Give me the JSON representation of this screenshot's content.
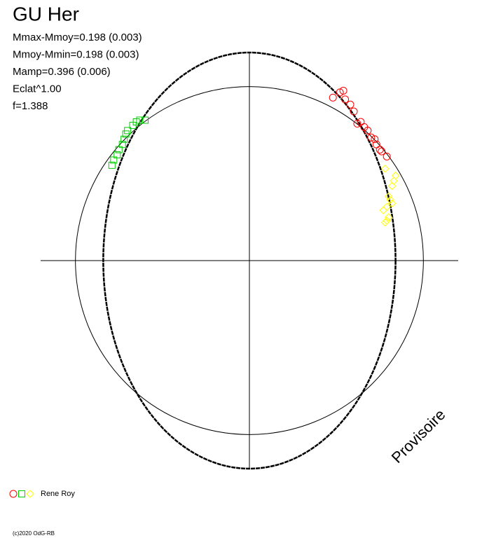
{
  "chart_data": {
    "type": "polar-phase",
    "title": "GU Her",
    "stats": [
      "Mmax-Mmoy=0.198 (0.003)",
      "Mmoy-Mmin=0.198 (0.003)",
      "Mamp=0.396 (0.006)",
      "Eclat^1.00",
      "f=1.388"
    ],
    "watermark": "Provisoire",
    "observer": "Rene Roy",
    "copyright": "(c)2020 OdG-RB",
    "xlim": [
      -1.2,
      1.2
    ],
    "ylim": [
      -1.2,
      1.2
    ],
    "circle_radius": 1,
    "ellipse": {
      "rx": 0.84,
      "ry": 1.2
    },
    "series": [
      {
        "color": "#ff0000",
        "marker": "circle",
        "x": [
          0.48,
          0.52,
          0.54,
          0.55,
          0.58,
          0.6,
          0.62,
          0.64,
          0.66,
          0.68,
          0.7,
          0.72,
          0.73,
          0.75,
          0.76,
          0.79
        ],
        "y": [
          0.94,
          0.97,
          0.98,
          0.93,
          0.9,
          0.86,
          0.79,
          0.8,
          0.77,
          0.75,
          0.71,
          0.7,
          0.67,
          0.64,
          0.63,
          0.6
        ]
      },
      {
        "color": "#00cc00",
        "marker": "square",
        "x": [
          -0.79,
          -0.78,
          -0.76,
          -0.75,
          -0.73,
          -0.72,
          -0.71,
          -0.7,
          -0.67,
          -0.65,
          -0.63,
          -0.6
        ],
        "y": [
          0.55,
          0.58,
          0.61,
          0.64,
          0.67,
          0.7,
          0.73,
          0.75,
          0.78,
          0.8,
          0.81,
          0.81
        ]
      },
      {
        "color": "#ffff00",
        "marker": "diamond",
        "x": [
          0.78,
          0.84,
          0.83,
          0.82,
          0.8,
          0.81,
          0.82,
          0.79,
          0.77,
          0.8,
          0.79,
          0.78
        ],
        "y": [
          0.53,
          0.49,
          0.46,
          0.43,
          0.37,
          0.35,
          0.33,
          0.31,
          0.29,
          0.25,
          0.23,
          0.22
        ]
      }
    ]
  }
}
